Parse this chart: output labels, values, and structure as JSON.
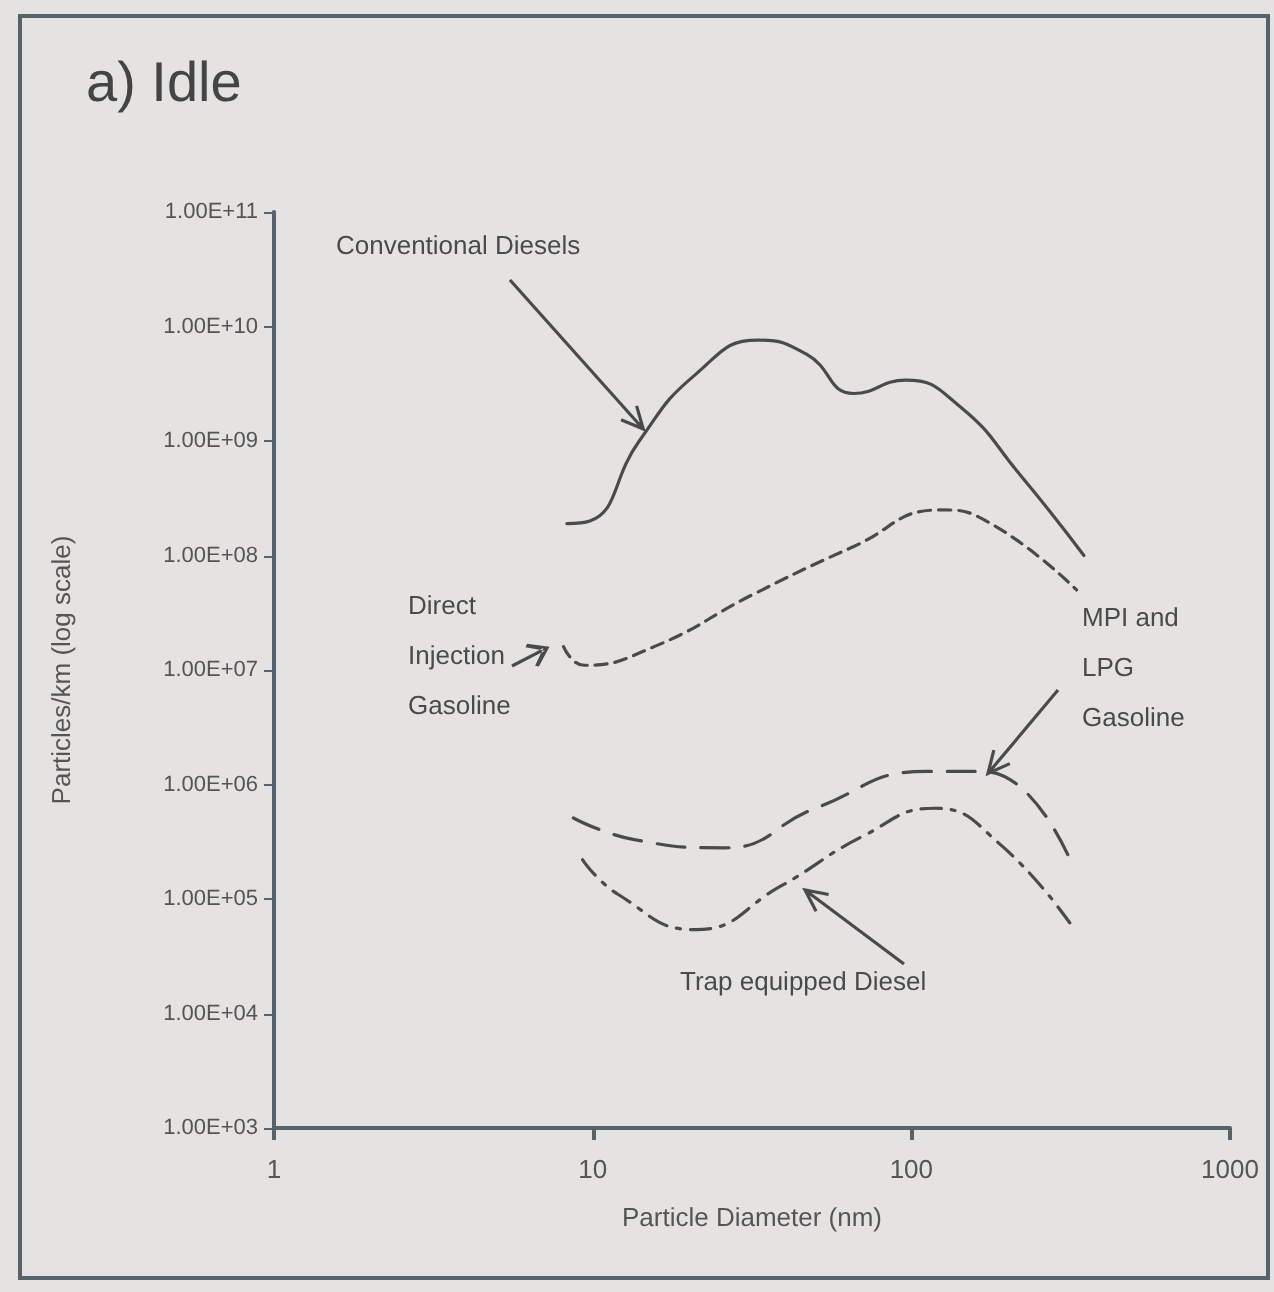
{
  "chart_data": {
    "type": "line",
    "title": "a) Idle",
    "xlabel": "Particle Diameter (nm)",
    "ylabel": "Particles/km (log scale)",
    "log": "xy",
    "grid": false,
    "marker": "none",
    "xlim": [
      1,
      1000
    ],
    "xticks": [
      1,
      10,
      100,
      1000
    ],
    "ylim": [
      1000,
      100000000000
    ],
    "yticks": [
      {
        "value": 1000,
        "label": "1.00E+03"
      },
      {
        "value": 10000,
        "label": "1.00E+04"
      },
      {
        "value": 100000,
        "label": "1.00E+05"
      },
      {
        "value": 1000000,
        "label": "1.00E+06"
      },
      {
        "value": 10000000,
        "label": "1.00E+07"
      },
      {
        "value": 100000000,
        "label": "1.00E+08"
      },
      {
        "value": 1000000000,
        "label": "1.00E+09"
      },
      {
        "value": 10000000000,
        "label": "1.00E+10"
      },
      {
        "value": 100000000000,
        "label": "1.00E+11"
      }
    ],
    "series": [
      {
        "name": "Conventional Diesels",
        "color": "#4a4a4a",
        "line_style": "solid",
        "x": [
          8.3,
          9.8,
          14,
          21,
          33,
          47,
          66,
          96,
          142,
          219,
          348
        ],
        "values": [
          190000000,
          200000000,
          1000000000,
          3800000000,
          7600000000,
          5700000000,
          2600000000,
          3400000000,
          2000000000,
          510000000,
          100000000
        ]
      },
      {
        "name": "Direct Injection Gasoline",
        "color": "#4a4a4a",
        "line_style": "dashed",
        "x": [
          8.1,
          9.4,
          15.6,
          32,
          66,
          123,
          172,
          330
        ],
        "values": [
          16000000,
          11000000,
          16000000,
          46000000,
          120000000,
          250000000,
          200000000,
          50000000
        ]
      },
      {
        "name": "MPI and LPG Gasoline",
        "color": "#4a4a4a",
        "line_style": "dashed",
        "x": [
          8.7,
          13.5,
          26,
          50,
          111,
          169,
          315
        ],
        "values": [
          510000,
          330000,
          280000,
          620000,
          1300000,
          1300000,
          220000
        ]
      },
      {
        "name": "Trap equipped Diesel",
        "color": "#4a4a4a",
        "line_style": "dashed",
        "x": [
          9.3,
          12,
          21,
          39,
          70,
          118,
          190,
          325
        ],
        "values": [
          220000,
          110000,
          54000,
          130000,
          350000,
          620000,
          300000,
          54000
        ]
      }
    ]
  }
}
